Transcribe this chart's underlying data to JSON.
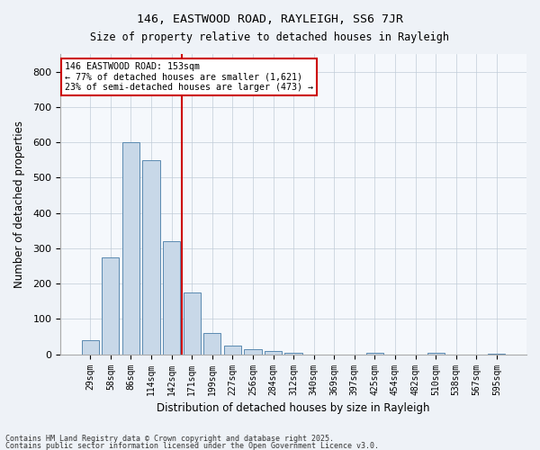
{
  "title1": "146, EASTWOOD ROAD, RAYLEIGH, SS6 7JR",
  "title2": "Size of property relative to detached houses in Rayleigh",
  "xlabel": "Distribution of detached houses by size in Rayleigh",
  "ylabel": "Number of detached properties",
  "categories": [
    "29sqm",
    "58sqm",
    "86sqm",
    "114sqm",
    "142sqm",
    "171sqm",
    "199sqm",
    "227sqm",
    "256sqm",
    "284sqm",
    "312sqm",
    "340sqm",
    "369sqm",
    "397sqm",
    "425sqm",
    "454sqm",
    "482sqm",
    "510sqm",
    "538sqm",
    "567sqm",
    "595sqm"
  ],
  "values": [
    40,
    275,
    600,
    550,
    320,
    175,
    60,
    25,
    15,
    10,
    5,
    0,
    0,
    0,
    5,
    0,
    0,
    5,
    0,
    0,
    2
  ],
  "bar_color": "#c8d8e8",
  "bar_edge_color": "#5a8ab0",
  "vline_x": 4.5,
  "vline_color": "#cc0000",
  "annotation_text": "146 EASTWOOD ROAD: 153sqm\n← 77% of detached houses are smaller (1,621)\n23% of semi-detached houses are larger (473) →",
  "annotation_box_color": "#ffffff",
  "annotation_box_edge": "#cc0000",
  "ylim": [
    0,
    850
  ],
  "yticks": [
    0,
    100,
    200,
    300,
    400,
    500,
    600,
    700,
    800
  ],
  "footer1": "Contains HM Land Registry data © Crown copyright and database right 2025.",
  "footer2": "Contains public sector information licensed under the Open Government Licence v3.0.",
  "bg_color": "#eef2f7",
  "plot_bg_color": "#f5f8fc"
}
